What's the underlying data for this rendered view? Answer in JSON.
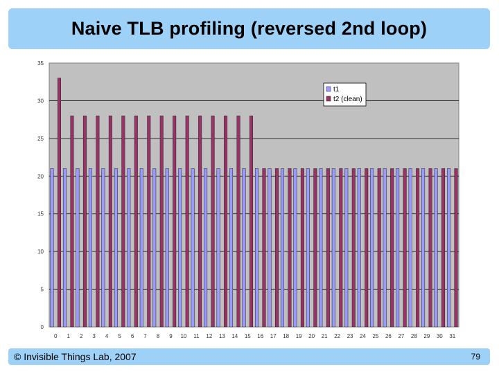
{
  "slide": {
    "title": "Naive TLB profiling (reversed 2nd loop)",
    "copyright": "© Invisible Things Lab, 2007",
    "page_number": "79",
    "bar_color": "#9dd1f7"
  },
  "chart_data": {
    "type": "bar",
    "title": "",
    "xlabel": "",
    "ylabel": "",
    "categories": [
      "0",
      "1",
      "2",
      "3",
      "4",
      "5",
      "6",
      "7",
      "8",
      "9",
      "10",
      "11",
      "12",
      "13",
      "14",
      "15",
      "16",
      "17",
      "18",
      "19",
      "20",
      "21",
      "22",
      "23",
      "24",
      "25",
      "26",
      "27",
      "28",
      "29",
      "30",
      "31"
    ],
    "series": [
      {
        "name": "t1",
        "color": "#9999ff",
        "values": [
          21,
          21,
          21,
          21,
          21,
          21,
          21,
          21,
          21,
          21,
          21,
          21,
          21,
          21,
          21,
          21,
          21,
          21,
          21,
          21,
          21,
          21,
          21,
          21,
          21,
          21,
          21,
          21,
          21,
          21,
          21,
          21
        ]
      },
      {
        "name": "t2 (clean)",
        "color": "#993366",
        "values": [
          33,
          28,
          28,
          28,
          28,
          28,
          28,
          28,
          28,
          28,
          28,
          28,
          28,
          28,
          28,
          28,
          21,
          21,
          21,
          21,
          21,
          21,
          21,
          21,
          21,
          21,
          21,
          21,
          21,
          21,
          21,
          21
        ]
      }
    ],
    "ylim": [
      0,
      35
    ],
    "yticks": [
      "0",
      "5",
      "10",
      "15",
      "20",
      "25",
      "30",
      "35"
    ],
    "grid": true,
    "legend_position": "top-right",
    "plot_background": "#c0c0c0"
  }
}
